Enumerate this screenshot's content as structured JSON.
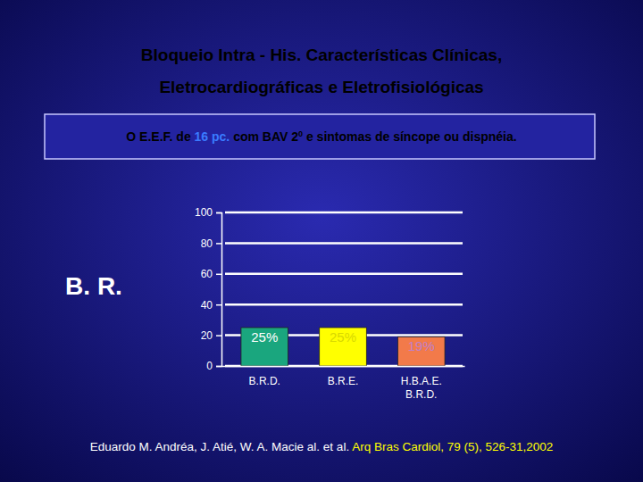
{
  "chart_data": {
    "type": "bar",
    "title": [
      "Bloqueio Intra - His. Características Clínicas,",
      "Eletrocardiográficas e Eletrofisiológicas"
    ],
    "subtitle": [
      "O E.E.F. de ",
      "16 pc.",
      " com  BAV 2",
      "0",
      " e sintomas de síncope ou dispnéia."
    ],
    "y_label": "B. R.",
    "categories": [
      "B.R.D.",
      "B.R.E.",
      "H.B.A.E.\nB.R.D."
    ],
    "values": [
      25,
      25,
      19
    ],
    "value_labels": [
      "25%",
      "25%",
      "19%"
    ],
    "colors": [
      "#1aa67e",
      "#ffff00",
      "#f27a4a"
    ],
    "ylim": [
      0,
      100
    ],
    "yticks": [
      0,
      20,
      40,
      60,
      80,
      100
    ],
    "grid": true,
    "data_labels": true,
    "source": [
      "Eduardo M. Andréa, J. Atié, W. A. Macie al. et al. ",
      "Arq Bras Cardiol, 79 (5), 526-31,2002"
    ]
  }
}
